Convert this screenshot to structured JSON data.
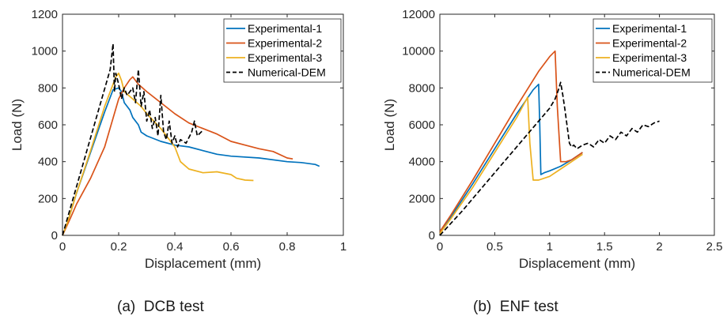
{
  "chart_data": [
    {
      "type": "line",
      "caption": "(a)  DCB test",
      "xlabel": "Displacement (mm)",
      "ylabel": "Load (N)",
      "xlim": [
        0,
        1
      ],
      "ylim": [
        0,
        1200
      ],
      "xticks": [
        0,
        0.2,
        0.4,
        0.6,
        0.8,
        1
      ],
      "xtick_labels": [
        "0",
        "0.2",
        "0.4",
        "0.6",
        "0.8",
        "1"
      ],
      "yticks": [
        0,
        200,
        400,
        600,
        800,
        1000,
        1200
      ],
      "ytick_labels": [
        "0",
        "200",
        "400",
        "600",
        "800",
        "1000",
        "1200"
      ],
      "grid": false,
      "legend_position": "top-right",
      "series": [
        {
          "name": "Experimental-1",
          "color": "#0072BD",
          "dash": false,
          "x": [
            0,
            0.02,
            0.05,
            0.1,
            0.15,
            0.18,
            0.2,
            0.21,
            0.22,
            0.24,
            0.25,
            0.27,
            0.28,
            0.3,
            0.35,
            0.4,
            0.45,
            0.5,
            0.55,
            0.6,
            0.7,
            0.8,
            0.85,
            0.9,
            0.915
          ],
          "y": [
            0,
            80,
            230,
            450,
            670,
            790,
            800,
            780,
            720,
            680,
            640,
            600,
            560,
            540,
            510,
            490,
            480,
            460,
            440,
            430,
            420,
            400,
            395,
            385,
            375
          ]
        },
        {
          "name": "Experimental-2",
          "color": "#D95319",
          "dash": false,
          "x": [
            0,
            0.03,
            0.05,
            0.1,
            0.15,
            0.2,
            0.22,
            0.24,
            0.25,
            0.27,
            0.3,
            0.35,
            0.4,
            0.45,
            0.5,
            0.55,
            0.6,
            0.65,
            0.7,
            0.75,
            0.8,
            0.82
          ],
          "y": [
            0,
            100,
            170,
            310,
            480,
            740,
            800,
            845,
            860,
            820,
            780,
            720,
            660,
            610,
            580,
            550,
            510,
            490,
            470,
            455,
            420,
            415
          ]
        },
        {
          "name": "Experimental-3",
          "color": "#EDB120",
          "dash": false,
          "x": [
            0,
            0.02,
            0.05,
            0.1,
            0.15,
            0.19,
            0.2,
            0.21,
            0.22,
            0.25,
            0.28,
            0.3,
            0.35,
            0.4,
            0.42,
            0.45,
            0.5,
            0.55,
            0.6,
            0.62,
            0.65,
            0.68
          ],
          "y": [
            0,
            80,
            230,
            460,
            700,
            860,
            880,
            840,
            780,
            740,
            700,
            660,
            580,
            480,
            400,
            360,
            340,
            345,
            330,
            310,
            300,
            298
          ]
        },
        {
          "name": "Numerical-DEM",
          "color": "#000000",
          "dash": true,
          "x": [
            0,
            0.17,
            0.18,
            0.185,
            0.19,
            0.2,
            0.21,
            0.22,
            0.23,
            0.24,
            0.25,
            0.26,
            0.27,
            0.28,
            0.29,
            0.3,
            0.31,
            0.32,
            0.33,
            0.34,
            0.35,
            0.36,
            0.37,
            0.38,
            0.39,
            0.4,
            0.41,
            0.42,
            0.44,
            0.46,
            0.47,
            0.48,
            0.5
          ],
          "y": [
            0,
            900,
            1040,
            780,
            880,
            820,
            740,
            800,
            760,
            780,
            800,
            720,
            900,
            700,
            780,
            620,
            680,
            580,
            640,
            540,
            760,
            560,
            520,
            620,
            500,
            540,
            480,
            520,
            500,
            560,
            620,
            540,
            570
          ]
        }
      ]
    },
    {
      "type": "line",
      "caption": "(b)  ENF test",
      "xlabel": "Displacement (mm)",
      "ylabel": "Load (N)",
      "xlim": [
        0,
        2.5
      ],
      "ylim": [
        0,
        12000
      ],
      "xticks": [
        0,
        0.5,
        1,
        1.5,
        2,
        2.5
      ],
      "xtick_labels": [
        "0",
        "0.5",
        "1",
        "1.5",
        "2",
        "2.5"
      ],
      "yticks": [
        0,
        2000,
        4000,
        6000,
        8000,
        10000,
        12000
      ],
      "ytick_labels": [
        "0",
        "2000",
        "4000",
        "6000",
        "8000",
        "10000",
        "12000"
      ],
      "grid": false,
      "legend_position": "top-right",
      "series": [
        {
          "name": "Experimental-1",
          "color": "#0072BD",
          "dash": false,
          "x": [
            0,
            0.1,
            0.3,
            0.5,
            0.7,
            0.85,
            0.9,
            0.91,
            0.92,
            0.95,
            1.0,
            1.1,
            1.2,
            1.3
          ],
          "y": [
            200,
            1000,
            2800,
            4700,
            6600,
            7900,
            8200,
            6000,
            3300,
            3400,
            3500,
            3750,
            4100,
            4500
          ]
        },
        {
          "name": "Experimental-2",
          "color": "#D95319",
          "dash": false,
          "x": [
            0,
            0.1,
            0.3,
            0.5,
            0.7,
            0.9,
            1.0,
            1.05,
            1.07,
            1.1,
            1.15,
            1.2,
            1.3
          ],
          "y": [
            200,
            1100,
            3000,
            5000,
            7000,
            8900,
            9700,
            10000,
            7000,
            4000,
            4000,
            4100,
            4500
          ]
        },
        {
          "name": "Experimental-3",
          "color": "#EDB120",
          "dash": false,
          "x": [
            0,
            0.1,
            0.3,
            0.5,
            0.7,
            0.8,
            0.82,
            0.85,
            0.9,
            1.0,
            1.1,
            1.2,
            1.3
          ],
          "y": [
            100,
            900,
            2600,
            4500,
            6400,
            7500,
            5000,
            3000,
            3000,
            3200,
            3600,
            4000,
            4400
          ]
        },
        {
          "name": "Numerical-DEM",
          "color": "#000000",
          "dash": true,
          "x": [
            0,
            0.2,
            0.4,
            0.6,
            0.8,
            1.0,
            1.05,
            1.08,
            1.1,
            1.12,
            1.14,
            1.16,
            1.18,
            1.2,
            1.22,
            1.25,
            1.3,
            1.35,
            1.4,
            1.45,
            1.5,
            1.55,
            1.6,
            1.65,
            1.7,
            1.75,
            1.8,
            1.85,
            1.9,
            1.95,
            2.0
          ],
          "y": [
            0,
            1300,
            2700,
            4100,
            5500,
            6900,
            7400,
            7900,
            8300,
            7600,
            6800,
            5900,
            5000,
            4800,
            4900,
            4700,
            4900,
            5000,
            4800,
            5200,
            5000,
            5400,
            5200,
            5600,
            5400,
            5800,
            5600,
            6000,
            5900,
            6100,
            6200
          ]
        }
      ]
    }
  ]
}
